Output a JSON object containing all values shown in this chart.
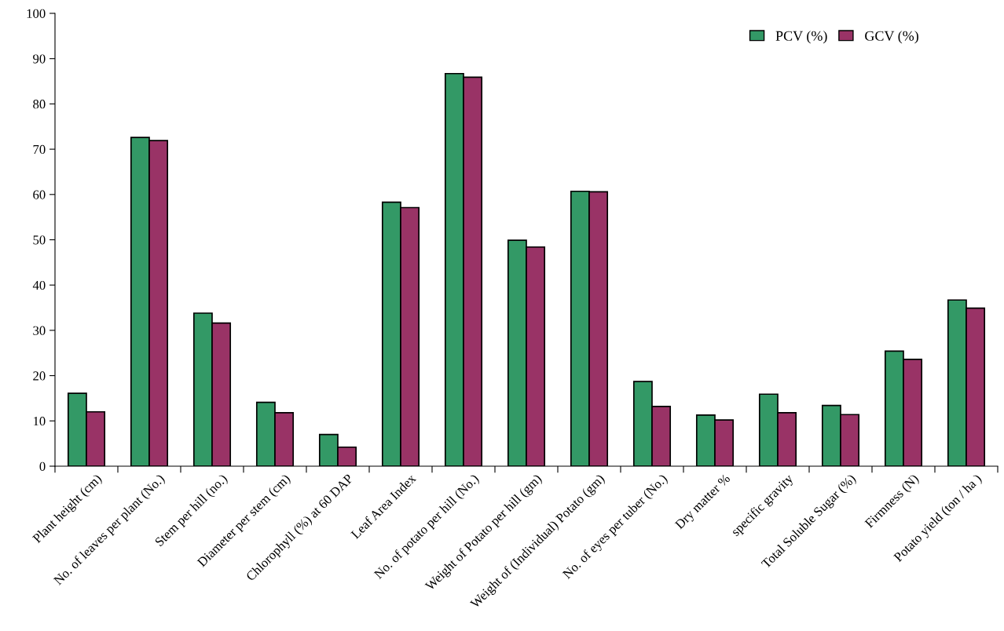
{
  "chart_data": {
    "type": "bar",
    "categories": [
      "Plant height (cm)",
      "No. of leaves per plant (No.)",
      "Stem per hill (no.)",
      "Diameter per stem (cm)",
      "Chlorophyll (%) at 60 DAP",
      "Leaf Area Index",
      "No. of potato per hill (No.)",
      "Weight of Potato per hill (gm)",
      "Weight of (Individual) Potato (gm)",
      "No. of eyes per tuber (No.)",
      "Dry matter %",
      "specific gravity",
      "Total Soluble Sugar (%)",
      "Firmness (N)",
      "Potato yield (ton / ha )"
    ],
    "series": [
      {
        "name": "PCV (%)",
        "color": "#339966",
        "values": [
          16.1,
          72.6,
          33.8,
          14.1,
          7.0,
          58.3,
          86.7,
          49.9,
          60.7,
          18.7,
          11.3,
          15.9,
          13.4,
          25.4,
          36.7
        ]
      },
      {
        "name": "GCV (%)",
        "color": "#993366",
        "values": [
          12.0,
          71.9,
          31.6,
          11.8,
          4.2,
          57.1,
          85.9,
          48.4,
          60.6,
          13.2,
          10.2,
          11.8,
          11.4,
          23.6,
          34.9
        ]
      }
    ],
    "ylim": [
      0,
      100
    ],
    "yticks": [
      0,
      10,
      20,
      30,
      40,
      50,
      60,
      70,
      80,
      90,
      100
    ],
    "grid": false,
    "legend": "top right"
  }
}
